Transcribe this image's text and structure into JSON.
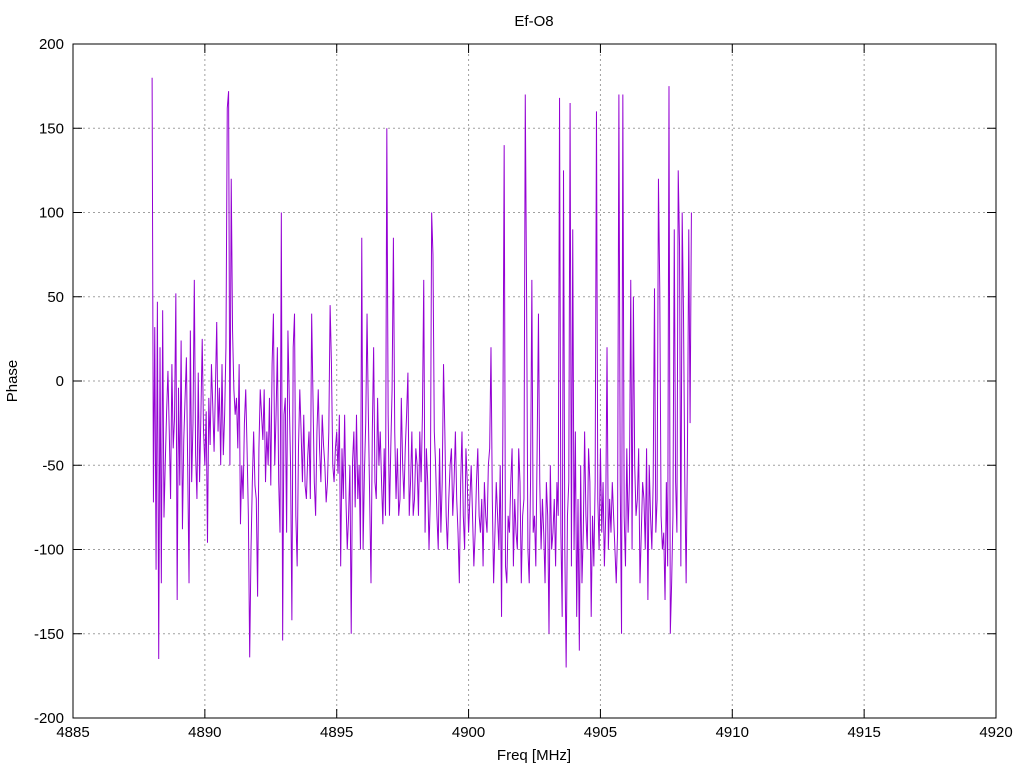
{
  "chart_data": {
    "type": "line",
    "title": "Ef-O8",
    "xlabel": "Freq [MHz]",
    "ylabel": "Phase",
    "xlim": [
      4885,
      4920
    ],
    "ylim": [
      -200,
      200
    ],
    "xticks": [
      4885,
      4890,
      4895,
      4900,
      4905,
      4910,
      4915,
      4920
    ],
    "yticks": [
      -200,
      -150,
      -100,
      -50,
      0,
      50,
      100,
      150,
      200
    ],
    "grid": true,
    "legend": "none",
    "series": [
      {
        "color": "#9400d3",
        "x_start": 4888.0,
        "x_step": 0.05,
        "values": [
          180,
          -72,
          32,
          -112,
          47,
          -165,
          20,
          -120,
          42,
          -81,
          -48,
          -18,
          6,
          -30,
          -70,
          10,
          -40,
          -22,
          52,
          -130,
          -4,
          -62,
          24,
          -88,
          -35,
          -10,
          14,
          -52,
          -120,
          30,
          -60,
          -25,
          60,
          -44,
          -70,
          5,
          -60,
          -20,
          25,
          -30,
          -50,
          -18,
          -96,
          -10,
          -38,
          10,
          -15,
          -42,
          -5,
          35,
          -30,
          -4,
          -50,
          10,
          -44,
          -20,
          20,
          162,
          172,
          -50,
          120,
          30,
          -5,
          -20,
          -10,
          -40,
          10,
          -85,
          -50,
          -70,
          -25,
          -5,
          -40,
          -80,
          -164,
          -100,
          -60,
          -30,
          -62,
          -70,
          -128,
          -40,
          -5,
          -20,
          -35,
          -5,
          -60,
          -30,
          -50,
          -10,
          -62,
          10,
          40,
          -50,
          -20,
          20,
          -60,
          -90,
          100,
          -154,
          -20,
          -10,
          -90,
          30,
          -10,
          -50,
          -142,
          20,
          40,
          -80,
          -110,
          -40,
          -5,
          -30,
          -60,
          -20,
          -62,
          -70,
          -45,
          -30,
          -70,
          40,
          -10,
          -60,
          -80,
          -30,
          -5,
          -40,
          -60,
          -20,
          -38,
          -50,
          -72,
          -60,
          -30,
          45,
          10,
          -50,
          -60,
          -40,
          -30,
          -55,
          -20,
          -110,
          -40,
          -70,
          -20,
          -70,
          -100,
          -80,
          -50,
          -150,
          -48,
          -30,
          -75,
          -20,
          -70,
          -50,
          -100,
          85,
          -100,
          -55,
          -25,
          40,
          -20,
          -70,
          -120,
          -30,
          20,
          -60,
          -70,
          -10,
          -50,
          -30,
          -60,
          -85,
          -40,
          -80,
          150,
          -20,
          -80,
          -40,
          -5,
          85,
          -30,
          -70,
          -40,
          -80,
          -70,
          -10,
          -50,
          -70,
          -40,
          -20,
          5,
          -80,
          -60,
          -30,
          -80,
          -70,
          -40,
          -50,
          -80,
          -30,
          -60,
          -20,
          60,
          -90,
          -40,
          -60,
          -100,
          -70,
          100,
          75,
          -30,
          -50,
          -80,
          -100,
          -40,
          -90,
          -60,
          10,
          -30,
          -80,
          -100,
          -70,
          -50,
          -40,
          -80,
          -60,
          -30,
          -70,
          -90,
          -120,
          -60,
          -30,
          -80,
          -100,
          -40,
          -60,
          -90,
          -70,
          -50,
          -80,
          -110,
          -90,
          -60,
          -40,
          -80,
          -90,
          -70,
          -110,
          -60,
          -80,
          -90,
          -50,
          -40,
          20,
          -70,
          -120,
          -90,
          -60,
          -80,
          -100,
          -50,
          -140,
          -30,
          140,
          -110,
          -120,
          -80,
          -90,
          -60,
          -40,
          -110,
          -70,
          -90,
          -100,
          -40,
          -60,
          -120,
          -80,
          -70,
          170,
          50,
          -100,
          -120,
          -60,
          60,
          -90,
          -80,
          -110,
          -40,
          40,
          -60,
          -100,
          -70,
          -90,
          -120,
          -60,
          -80,
          -150,
          -50,
          -100,
          -90,
          -70,
          -110,
          -60,
          -80,
          168,
          -90,
          -140,
          125,
          -100,
          -170,
          -80,
          -60,
          165,
          -110,
          90,
          -100,
          -30,
          -140,
          -70,
          -160,
          -50,
          -120,
          -90,
          -30,
          -80,
          -100,
          -40,
          -60,
          -140,
          -80,
          -110,
          -60,
          160,
          -70,
          -100,
          -40,
          -90,
          -60,
          -110,
          -80,
          20,
          -100,
          -70,
          -90,
          -60,
          -80,
          -100,
          -120,
          -90,
          170,
          -60,
          -150,
          170,
          -80,
          -110,
          -40,
          -90,
          -60,
          60,
          -100,
          50,
          -50,
          -80,
          -70,
          -40,
          -120,
          -90,
          -60,
          -70,
          -100,
          -40,
          -130,
          -50,
          -80,
          -100,
          -60,
          55,
          -90,
          -70,
          120,
          55,
          -80,
          -100,
          -90,
          -130,
          -60,
          -110,
          175,
          -150,
          -120,
          -80,
          90,
          -60,
          -90,
          125,
          80,
          -110,
          100,
          40,
          -60,
          -120,
          -40,
          90,
          -25,
          100
        ]
      }
    ]
  }
}
